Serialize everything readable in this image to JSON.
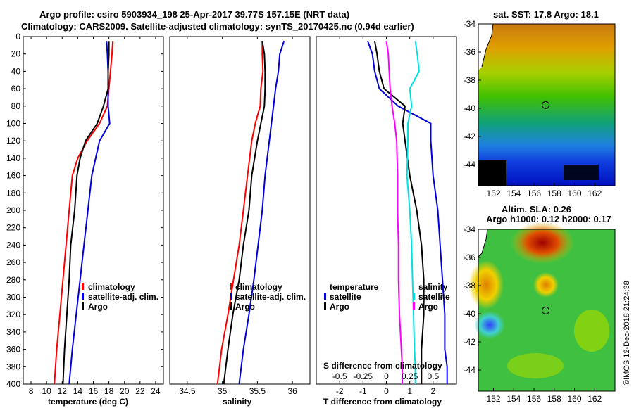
{
  "title_line1": "Argo profile: csiro 5903934_198 25-Apr-2017 39.77S 157.15E (NRT data)",
  "title_line2": "Climatology: CARS2009. Satellite-adjusted climatology: synTS_20170425.nc (0.94d earlier)",
  "colors": {
    "climatology": "#ff0000",
    "satellite": "#0000dd",
    "argo": "#000000",
    "s_diff_clim": "#ff00ff",
    "s_diff_sat": "#00e0e0"
  },
  "chart_data": [
    {
      "type": "line",
      "panel": "temperature",
      "xlabel": "temperature (deg C)",
      "ylabel": "",
      "xlim": [
        7,
        25
      ],
      "ylim": [
        400,
        0
      ],
      "xticks": [
        8,
        10,
        12,
        14,
        16,
        18,
        20,
        22,
        24
      ],
      "yticks": [
        0,
        20,
        40,
        60,
        80,
        100,
        120,
        140,
        160,
        180,
        200,
        220,
        240,
        260,
        280,
        300,
        320,
        340,
        360,
        380,
        400
      ],
      "legend": [
        "climatology",
        "satellite-adj. clim.",
        "Argo"
      ],
      "series": [
        {
          "name": "climatology",
          "color": "#ff0000",
          "x": [
            18.5,
            18.4,
            18.2,
            18.0,
            17.8,
            16.8,
            15.2,
            14.0,
            13.3,
            12.9,
            12.5,
            12.1,
            11.7,
            11.3,
            11.0
          ],
          "depth": [
            5,
            20,
            40,
            60,
            80,
            100,
            120,
            140,
            160,
            200,
            240,
            280,
            320,
            360,
            400
          ]
        },
        {
          "name": "satellite-adj. clim.",
          "color": "#0000dd",
          "x": [
            17.7,
            17.8,
            17.9,
            17.9,
            17.9,
            18.1,
            16.8,
            16.3,
            15.8,
            15.3,
            14.8,
            14.3,
            13.8,
            13.3,
            12.9
          ],
          "depth": [
            5,
            20,
            40,
            60,
            80,
            100,
            120,
            140,
            160,
            200,
            240,
            280,
            320,
            360,
            400
          ]
        },
        {
          "name": "Argo",
          "color": "#000000",
          "x": [
            18.0,
            18.0,
            17.9,
            17.9,
            17.3,
            16.5,
            15.0,
            14.3,
            13.9,
            13.6,
            13.1,
            12.9,
            12.6,
            12.3,
            12.1
          ],
          "depth": [
            5,
            20,
            40,
            60,
            80,
            100,
            120,
            140,
            160,
            200,
            240,
            280,
            320,
            360,
            400
          ]
        }
      ]
    },
    {
      "type": "line",
      "panel": "salinity",
      "xlabel": "salinity",
      "ylabel": "",
      "xlim": [
        34.25,
        36.25
      ],
      "ylim": [
        400,
        0
      ],
      "xticks": [
        34.5,
        35,
        35.5,
        36
      ],
      "legend": [
        "climatology",
        "satellite-adj. clim.",
        "Argo"
      ],
      "series": [
        {
          "name": "climatology",
          "color": "#ff0000",
          "x": [
            35.57,
            35.57,
            35.58,
            35.55,
            35.54,
            35.47,
            35.42,
            35.39,
            35.36,
            35.3,
            35.24,
            35.16,
            35.08,
            34.99,
            34.93
          ],
          "depth": [
            5,
            20,
            40,
            60,
            80,
            100,
            120,
            140,
            160,
            200,
            240,
            280,
            320,
            360,
            400
          ]
        },
        {
          "name": "satellite-adj. clim.",
          "color": "#0000dd",
          "x": [
            35.88,
            35.82,
            35.8,
            35.76,
            35.73,
            35.7,
            35.67,
            35.64,
            35.61,
            35.57,
            35.51,
            35.45,
            35.38,
            35.3,
            35.24
          ],
          "depth": [
            5,
            20,
            40,
            60,
            80,
            100,
            120,
            140,
            160,
            200,
            240,
            280,
            320,
            360,
            400
          ]
        },
        {
          "name": "Argo",
          "color": "#000000",
          "x": [
            35.57,
            35.6,
            35.61,
            35.61,
            35.6,
            35.55,
            35.5,
            35.46,
            35.42,
            35.38,
            35.3,
            35.24,
            35.15,
            35.08,
            35.02
          ],
          "depth": [
            5,
            20,
            40,
            60,
            80,
            100,
            120,
            140,
            160,
            200,
            240,
            280,
            320,
            360,
            400
          ]
        }
      ]
    },
    {
      "type": "line",
      "panel": "difference",
      "xlabel": "T difference from climatology",
      "top_axis_label": "S difference from climatology",
      "xlim": [
        -3,
        3
      ],
      "s_xlim": [
        -0.75,
        0.75
      ],
      "ylim": [
        400,
        0
      ],
      "xticks": [
        -2,
        -1,
        0,
        1,
        2
      ],
      "top_ticks": [
        "-0.5",
        "-0.25",
        "0",
        "0.25",
        "0.5"
      ],
      "top_tick_values": [
        -0.5,
        -0.25,
        0,
        0.25,
        0.5
      ],
      "legend_temperature": [
        "temperature",
        "satellite",
        "Argo"
      ],
      "legend_salinity": [
        "salinity",
        "satellite",
        "Argo"
      ],
      "series": [
        {
          "name": "T satellite",
          "color": "#0000dd",
          "scale": "T",
          "x": [
            -0.8,
            -0.6,
            -0.5,
            -0.3,
            0.5,
            1.9,
            1.9,
            2.0,
            2.2,
            2.3,
            2.4,
            2.5,
            2.5,
            2.6,
            2.6
          ],
          "depth": [
            5,
            20,
            40,
            60,
            80,
            100,
            120,
            160,
            200,
            240,
            280,
            320,
            360,
            380,
            400
          ]
        },
        {
          "name": "T Argo",
          "color": "#000000",
          "scale": "T",
          "x": [
            -0.5,
            -0.4,
            -0.3,
            -0.1,
            0.8,
            0.7,
            0.8,
            1.0,
            1.3,
            1.5,
            1.6,
            1.6,
            1.5,
            1.5,
            1.5
          ],
          "depth": [
            5,
            20,
            40,
            60,
            80,
            100,
            120,
            160,
            200,
            240,
            280,
            320,
            360,
            380,
            400
          ]
        },
        {
          "name": "S satellite",
          "color": "#00e0e0",
          "scale": "S",
          "x": [
            0.31,
            0.33,
            0.35,
            0.25,
            0.27,
            0.23,
            0.23,
            0.22,
            0.25,
            0.27,
            0.28,
            0.29,
            0.3,
            0.31,
            0.31
          ],
          "depth": [
            5,
            20,
            40,
            60,
            80,
            100,
            120,
            160,
            200,
            240,
            280,
            320,
            360,
            380,
            400
          ]
        },
        {
          "name": "S Argo",
          "color": "#ff00ff",
          "scale": "S",
          "x": [
            0.0,
            0.02,
            0.03,
            0.04,
            0.06,
            0.09,
            0.11,
            0.12,
            0.12,
            0.13,
            0.13,
            0.14,
            0.16,
            0.17,
            0.17
          ],
          "depth": [
            5,
            20,
            40,
            60,
            80,
            100,
            120,
            160,
            200,
            240,
            280,
            320,
            360,
            380,
            400
          ]
        }
      ]
    },
    {
      "type": "heatmap",
      "panel": "sst_map",
      "title": "sat. SST: 17.8 Argo: 18.1",
      "xticks": [
        152,
        154,
        156,
        158,
        160,
        162
      ],
      "yticks": [
        -34,
        -36,
        -38,
        -40,
        -42,
        -44
      ],
      "xlim": [
        150.5,
        164
      ],
      "ylim": [
        -45.5,
        -34
      ],
      "argo_position": [
        157.15,
        -39.77
      ]
    },
    {
      "type": "heatmap",
      "panel": "sla_map",
      "title_line1": "Altim. SLA: 0.26",
      "title_line2": "Argo h1000: 0.12 h2000: 0.17",
      "xticks": [
        152,
        154,
        156,
        158,
        160,
        162
      ],
      "yticks": [
        -34,
        -36,
        -38,
        -40,
        -42,
        -44
      ],
      "xlim": [
        150.5,
        164
      ],
      "ylim": [
        -45.5,
        -34
      ],
      "argo_position": [
        157.15,
        -39.77
      ]
    }
  ],
  "watermark": "©IMOS 12-Dec-2018 21:24:38"
}
